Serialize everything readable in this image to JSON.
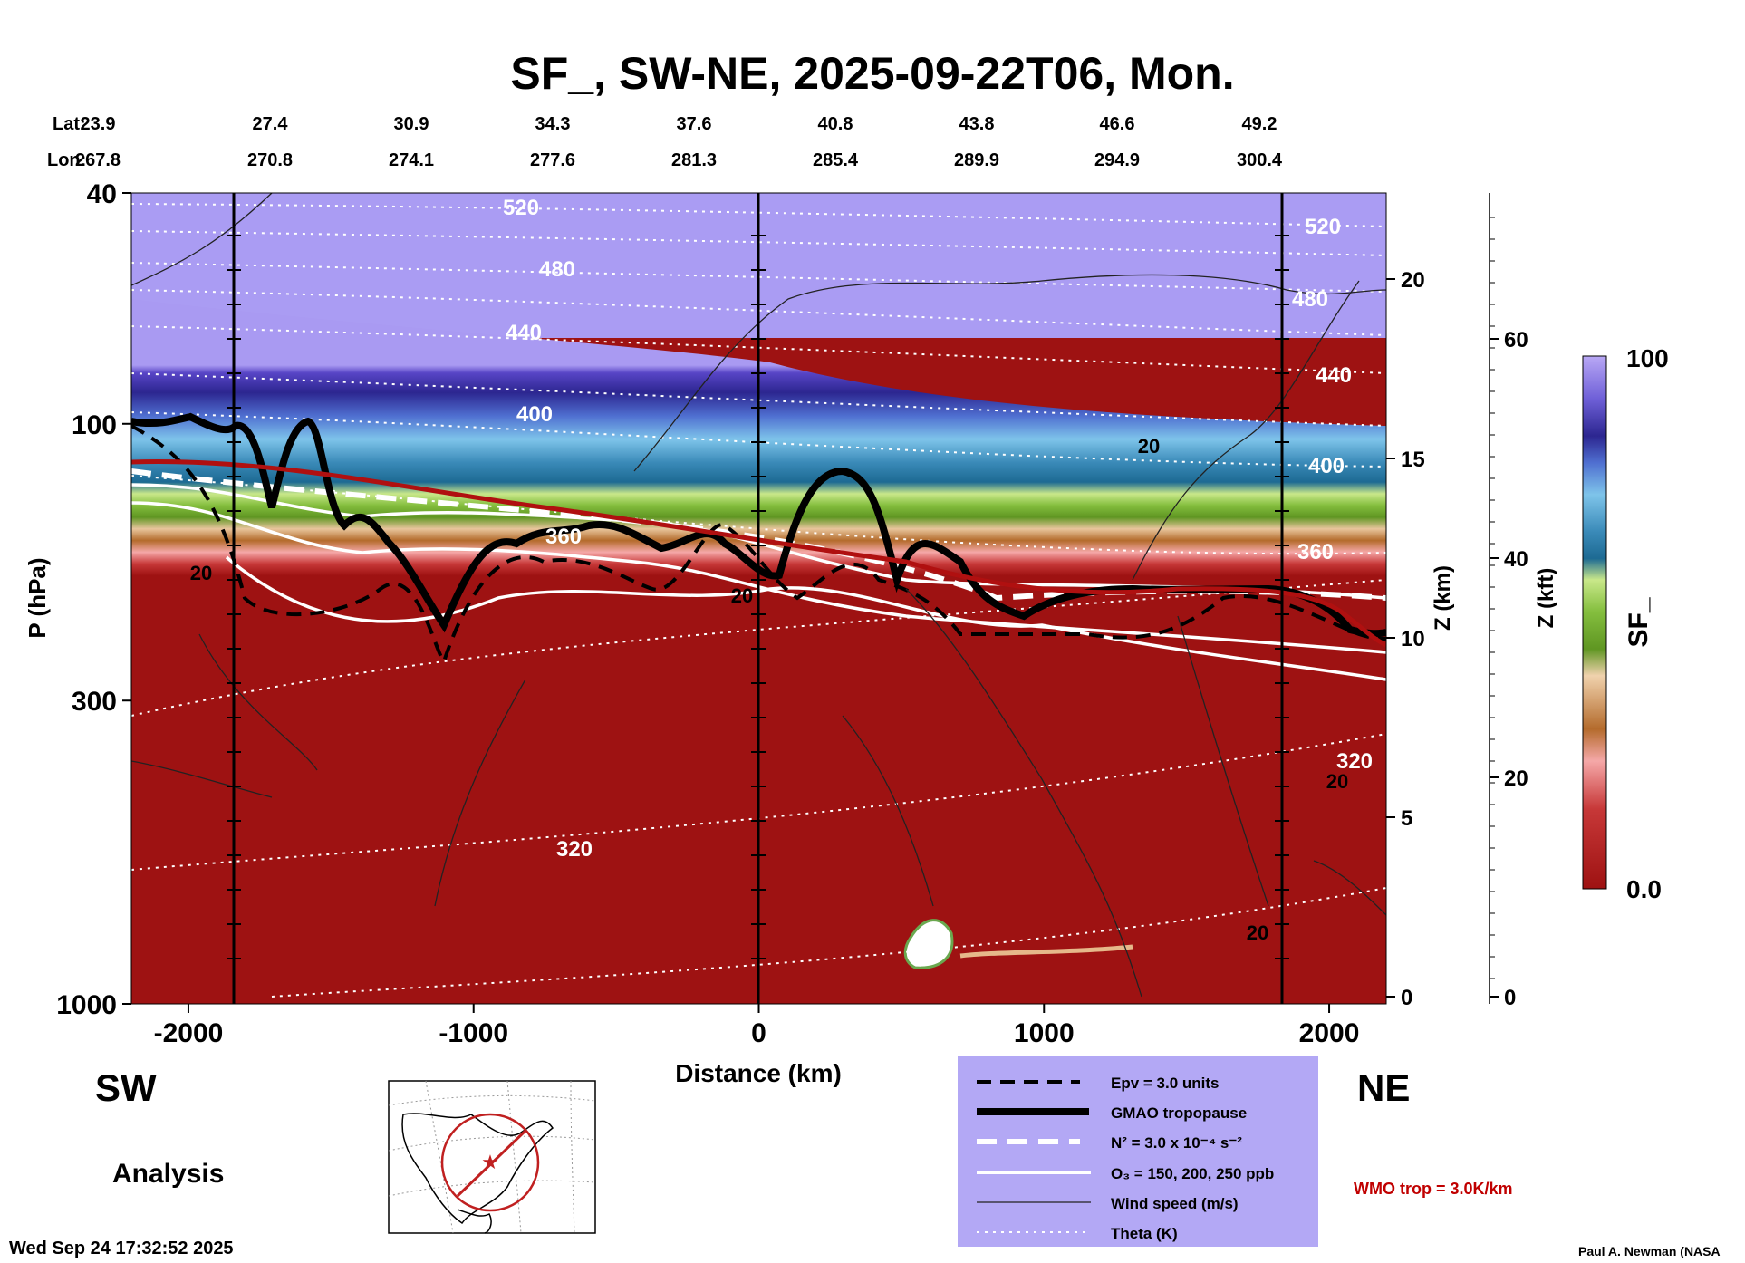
{
  "chart_data": {
    "type": "cross-section",
    "title": "SF_, SW-NE, 2025-09-22T06, Mon.",
    "xlabel": "Distance (km)",
    "ylabel": "P (hPa)",
    "z_km_label": "Z (km)",
    "z_kft_label": "Z (kft)",
    "colorbar_label": "SF_",
    "colorbar_range": [
      "0.0",
      "100"
    ],
    "xlim": [
      -2200,
      2200
    ],
    "ylim": [
      1000,
      40
    ],
    "x_ticks": [
      -2000,
      -1000,
      0,
      1000,
      2000
    ],
    "p_ticks": [
      40,
      100,
      300,
      1000
    ],
    "z_km_ticks": [
      0,
      5,
      10,
      15,
      20
    ],
    "z_kft_ticks": [
      0,
      20,
      40,
      60
    ],
    "lat_label": "Lat:",
    "lon_label": "Lon:",
    "lat": [
      "23.9",
      "27.4",
      "30.9",
      "34.3",
      "37.6",
      "40.8",
      "43.8",
      "46.6",
      "49.2"
    ],
    "lon": [
      "267.8",
      "270.8",
      "274.1",
      "277.6",
      "281.3",
      "285.4",
      "289.9",
      "294.9",
      "300.4"
    ],
    "theta_labels": [
      "520",
      "480",
      "440",
      "400",
      "360",
      "320"
    ],
    "theta_labels_right": [
      "520",
      "480",
      "440",
      "400",
      "360",
      "320"
    ],
    "wind_labels": [
      "20",
      "20",
      "20",
      "20",
      "20"
    ],
    "direction_left": "SW",
    "direction_right": "NE",
    "analysis_label": "Analysis",
    "legend": [
      {
        "style": "dashed-black",
        "label": "Epv = 3.0 units"
      },
      {
        "style": "thick-black",
        "label": "GMAO tropopause"
      },
      {
        "style": "dashed-white",
        "label": "N² = 3.0 x 10⁻⁴ s⁻²"
      },
      {
        "style": "solid-white",
        "label": "O₃ = 150, 200, 250 ppb"
      },
      {
        "style": "thin-black",
        "label": "Wind speed (m/s)"
      },
      {
        "style": "dotted-white",
        "label": "Theta (K)"
      }
    ],
    "wmo_label": "WMO trop = 3.0K/km",
    "timestamp": "Wed Sep 24 17:32:52 2025",
    "credit": "Paul A. Newman (NASA",
    "colors": {
      "legend_bg": "#b3a8f5",
      "wmo": "#c00000",
      "surface": "#9e1212"
    }
  }
}
